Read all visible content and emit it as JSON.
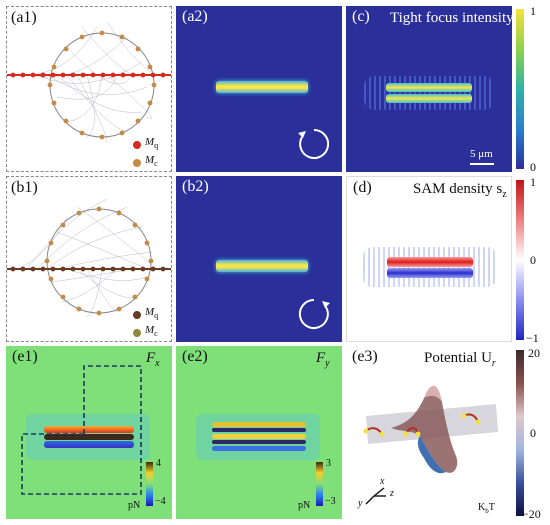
{
  "panels": {
    "a1": {
      "label": "(a1)",
      "legend": [
        {
          "sym": "M",
          "sub": "q",
          "color": "#d62a1e"
        },
        {
          "sym": "M",
          "sub": "c",
          "color": "#c58a45"
        }
      ]
    },
    "a2": {
      "label": "(a2)"
    },
    "c": {
      "label": "(c)",
      "title": "Tight focus intensity",
      "scale_bar": "5 μm",
      "cbar_ticks": [
        "1",
        "0"
      ]
    },
    "b1": {
      "label": "(b1)",
      "legend": [
        {
          "sym": "M",
          "sub": "q",
          "color": "#6b3a22"
        },
        {
          "sym": "M",
          "sub": "c",
          "color": "#8c8a3a"
        }
      ]
    },
    "b2": {
      "label": "(b2)"
    },
    "d": {
      "label": "(d)",
      "title": "SAM density s",
      "title_sub": "z",
      "cbar_ticks": [
        "1",
        "0",
        "−1"
      ]
    },
    "e1": {
      "label": "(e1)",
      "title": "F",
      "title_sub": "x",
      "cbar_ticks": [
        "4",
        "−4"
      ],
      "unit": "pN"
    },
    "e2": {
      "label": "(e2)",
      "title": "F",
      "title_sub": "y",
      "cbar_ticks": [
        "3",
        "−3"
      ],
      "unit": "pN"
    },
    "e3": {
      "label": "(e3)",
      "title": "Potential U",
      "title_sub": "r",
      "cbar_ticks": [
        "20",
        "0",
        "−20"
      ],
      "unit": "K",
      "unit_sub": "b",
      "unit_tail": "T",
      "axes": [
        "x",
        "y",
        "z"
      ]
    }
  }
}
